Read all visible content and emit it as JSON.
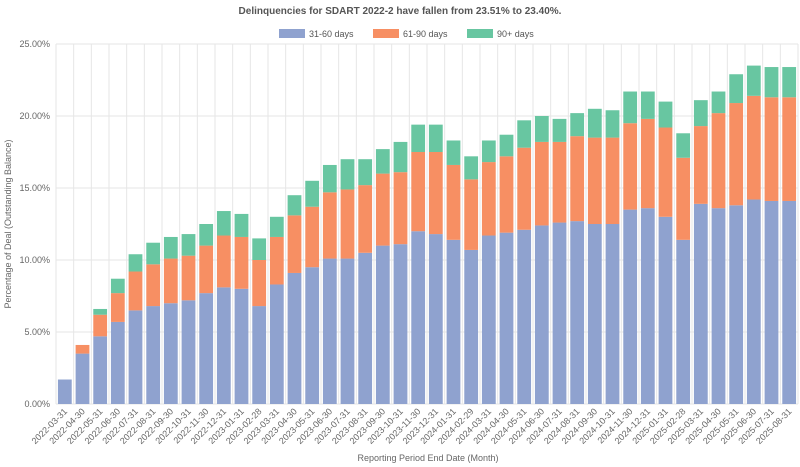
{
  "chart_data": {
    "type": "bar",
    "stacked": true,
    "title": "Delinquencies for SDART 2022-2 have fallen from 23.51% to 23.40%.",
    "xlabel": "Reporting Period End Date (Month)",
    "ylabel": "Percentage of Deal (Outstanding Balance)",
    "ylim": [
      0,
      25
    ],
    "yticks": [
      "0.00%",
      "5.00%",
      "10.00%",
      "15.00%",
      "20.00%",
      "25.00%"
    ],
    "grid": true,
    "legend_position": "top-center",
    "categories": [
      "2022-03-31",
      "2022-04-30",
      "2022-05-31",
      "2022-06-30",
      "2022-07-31",
      "2022-08-31",
      "2022-09-30",
      "2022-10-31",
      "2022-11-30",
      "2022-12-31",
      "2023-01-31",
      "2023-02-28",
      "2023-03-31",
      "2023-04-30",
      "2023-05-31",
      "2023-06-30",
      "2023-07-31",
      "2023-08-31",
      "2023-09-30",
      "2023-10-31",
      "2023-11-30",
      "2023-12-31",
      "2024-01-31",
      "2024-02-29",
      "2024-03-31",
      "2024-04-30",
      "2024-05-31",
      "2024-06-30",
      "2024-07-31",
      "2024-08-31",
      "2024-09-30",
      "2024-10-31",
      "2024-11-30",
      "2024-12-31",
      "2025-01-31",
      "2025-02-28",
      "2025-03-31",
      "2025-04-30",
      "2025-05-31",
      "2025-06-30",
      "2025-07-31",
      "2025-08-31"
    ],
    "series": [
      {
        "name": "31-60 days",
        "color": "#8fa2cf",
        "values": [
          1.7,
          3.5,
          4.7,
          5.7,
          6.5,
          6.8,
          7.0,
          7.2,
          7.7,
          8.1,
          8.0,
          6.8,
          8.3,
          9.1,
          9.5,
          10.1,
          10.1,
          10.5,
          11.0,
          11.1,
          12.0,
          11.8,
          11.4,
          10.7,
          11.7,
          11.9,
          12.1,
          12.4,
          12.6,
          12.7,
          12.5,
          12.5,
          13.5,
          13.6,
          13.0,
          11.4,
          13.9,
          13.6,
          13.8,
          14.2,
          14.1,
          14.1
        ]
      },
      {
        "name": "61-90 days",
        "color": "#f78f63",
        "values": [
          0.0,
          0.6,
          1.5,
          2.0,
          2.7,
          2.9,
          3.1,
          3.1,
          3.3,
          3.6,
          3.6,
          3.2,
          3.3,
          4.0,
          4.2,
          4.6,
          4.8,
          4.7,
          5.0,
          5.0,
          5.5,
          5.7,
          5.2,
          4.9,
          5.1,
          5.3,
          5.7,
          5.8,
          5.6,
          5.9,
          6.0,
          6.0,
          6.0,
          6.2,
          6.2,
          5.7,
          5.4,
          6.6,
          7.1,
          7.2,
          7.2,
          7.2
        ]
      },
      {
        "name": "90+ days",
        "color": "#68c6a1",
        "values": [
          0.0,
          0.0,
          0.4,
          1.0,
          1.2,
          1.5,
          1.5,
          1.5,
          1.5,
          1.7,
          1.6,
          1.5,
          1.4,
          1.4,
          1.8,
          1.9,
          2.1,
          1.8,
          1.7,
          2.1,
          1.9,
          1.9,
          1.7,
          1.6,
          1.5,
          1.5,
          1.9,
          1.8,
          1.6,
          1.6,
          2.0,
          1.9,
          2.2,
          1.9,
          1.8,
          1.7,
          1.8,
          1.5,
          2.0,
          2.1,
          2.1,
          2.1
        ]
      }
    ]
  }
}
